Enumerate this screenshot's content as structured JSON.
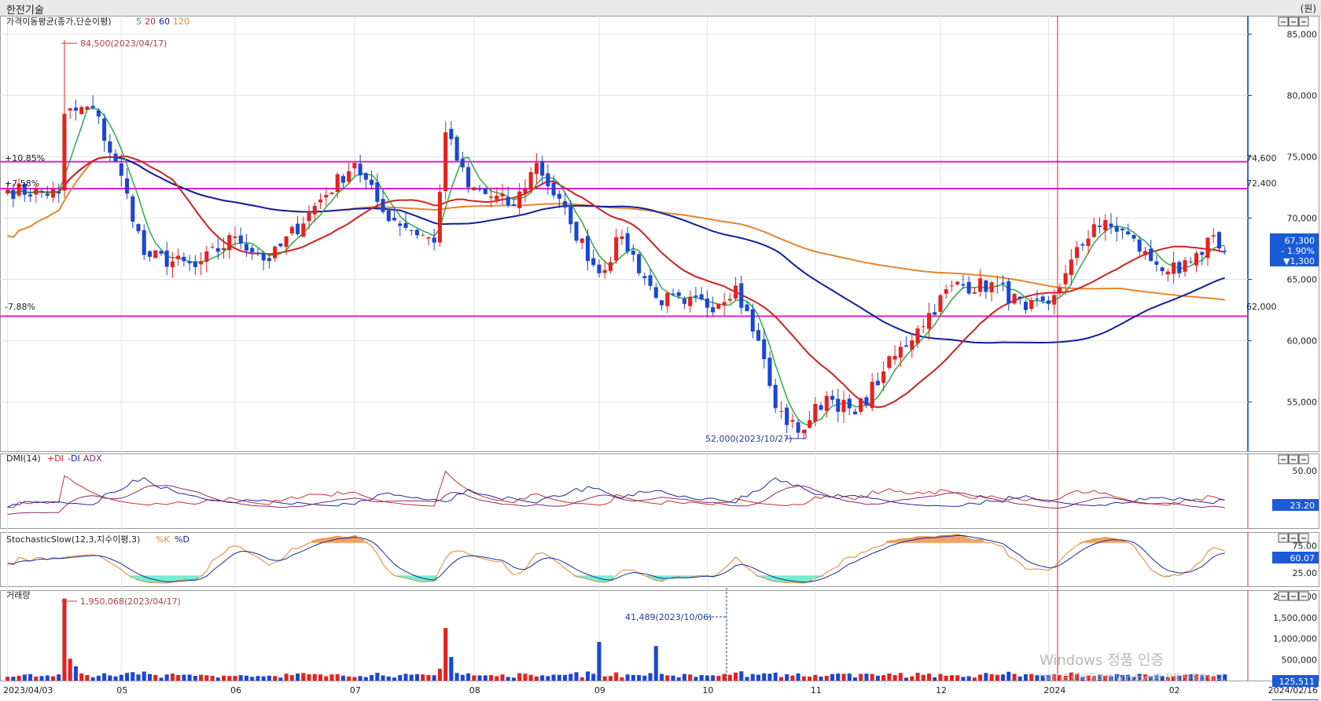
{
  "window": {
    "title": "한전기술",
    "unit": "(원)"
  },
  "legends": {
    "ma": {
      "name": "가격이동평균(종가,단순이평)",
      "p5": "5",
      "p20": "20",
      "p60": "60",
      "p120": "120"
    },
    "dmi": {
      "name": "DMI(14)",
      "pdi": "+DI",
      "mdi": "-DI",
      "adx": "ADX"
    },
    "stoch": {
      "name": "StochasticSlow(12,3,지수이평,3)",
      "k": "%K",
      "d": "%D"
    },
    "vol": {
      "name": "거래량"
    }
  },
  "annotations": {
    "high": "84,500(2023/04/17)",
    "low": "52,000(2023/10/27)",
    "vol_high": "1,950,068(2023/04/17)",
    "vol_mark": "41,489(2023/10/06)",
    "pct1": "+10.85%",
    "pct2": "+7.58%",
    "pct3": "-7.88%",
    "lvl1": "74,600",
    "lvl2": "72,400",
    "lvl3": "62,000"
  },
  "badges": {
    "price": "67,300",
    "pct": "- 1.90%",
    "chg": "▼1,300",
    "dmi": "23.20",
    "stoch": "60.07",
    "vol": "125,511"
  },
  "watermark": {
    "line1": "Windows 정품 인증",
    "line2": "[설정]으로 이동하여 Windows를 정품 인증합니다."
  },
  "colors": {
    "up": "#e8201e",
    "down": "#1a46d8",
    "ma5": "#2fa84a",
    "ma20": "#d42020",
    "ma60": "#10209c",
    "ma120": "#e8852e",
    "level": "#e020d0"
  },
  "chart_data": [
    {
      "type": "candlestick",
      "title": "가격이동평균(종가,단순이평)",
      "x_range": [
        "2023/04/03",
        "2024/02/16"
      ],
      "x_ticks": [
        "2023/04/03",
        "05",
        "06",
        "07",
        "08",
        "09",
        "10",
        "11",
        "12",
        "2024",
        "02",
        "2024/02/16"
      ],
      "y_ticks": [
        "55,000",
        "60,000",
        "65,000",
        "70,000",
        "75,000",
        "80,000",
        "85,000"
      ],
      "ylim": [
        51000,
        86500
      ],
      "series_names": [
        "5",
        "20",
        "60",
        "120"
      ],
      "anchors_close": [
        [
          "2023/04/03",
          72300
        ],
        [
          "2023/04/14",
          72000
        ],
        [
          "2023/04/17",
          78500
        ],
        [
          "2023/04/24",
          79000
        ],
        [
          "2023/05/03",
          72000
        ],
        [
          "2023/05/09",
          67000
        ],
        [
          "2023/05/22",
          66000
        ],
        [
          "2023/06/01",
          68500
        ],
        [
          "2023/06/12",
          66500
        ],
        [
          "2023/06/22",
          71000
        ],
        [
          "2023/07/03",
          74500
        ],
        [
          "2023/07/10",
          70500
        ],
        [
          "2023/07/21",
          68000
        ],
        [
          "2023/07/25",
          77000
        ],
        [
          "2023/07/31",
          72500
        ],
        [
          "2023/08/10",
          71000
        ],
        [
          "2023/08/17",
          74500
        ],
        [
          "2023/08/25",
          69500
        ],
        [
          "2023/09/01",
          65500
        ],
        [
          "2023/09/07",
          68500
        ],
        [
          "2023/09/15",
          63500
        ],
        [
          "2023/09/22",
          63000
        ],
        [
          "2023/10/06",
          63000
        ],
        [
          "2023/10/12",
          64500
        ],
        [
          "2023/10/18",
          60000
        ],
        [
          "2023/10/23",
          54500
        ],
        [
          "2023/10/27",
          52500
        ],
        [
          "2023/11/03",
          55500
        ],
        [
          "2023/11/10",
          54000
        ],
        [
          "2023/11/17",
          57500
        ],
        [
          "2023/11/27",
          61000
        ],
        [
          "2023/12/05",
          64500
        ],
        [
          "2023/12/15",
          64500
        ],
        [
          "2023/12/22",
          62500
        ],
        [
          "2024/01/02",
          63000
        ],
        [
          "2024/01/05",
          65500
        ],
        [
          "2024/01/12",
          69500
        ],
        [
          "2024/01/19",
          69000
        ],
        [
          "2024/01/26",
          66500
        ],
        [
          "2024/02/02",
          65500
        ],
        [
          "2024/02/08",
          67000
        ],
        [
          "2024/02/14",
          68600
        ],
        [
          "2024/02/16",
          67300
        ]
      ],
      "annotations": [
        "84,500(2023/04/17)",
        "52,000(2023/10/27)"
      ],
      "levels": [
        74600,
        72400,
        62000
      ]
    },
    {
      "type": "line",
      "title": "DMI(14)",
      "series_names": [
        "+DI",
        "-DI",
        "ADX"
      ],
      "y_ticks": [
        "50.00"
      ],
      "last": 23.2
    },
    {
      "type": "line",
      "title": "StochasticSlow(12,3,지수이평,3)",
      "series_names": [
        "%K",
        "%D"
      ],
      "y_ticks": [
        "75.00",
        "25.00"
      ],
      "last": 60.07
    },
    {
      "type": "bar",
      "title": "거래량",
      "y_ticks": [
        "500,000",
        "1,000,000",
        "1,500,000",
        "2,000,000"
      ],
      "ylim": [
        0,
        2150000
      ],
      "max": 1950068,
      "last": 125511
    }
  ]
}
